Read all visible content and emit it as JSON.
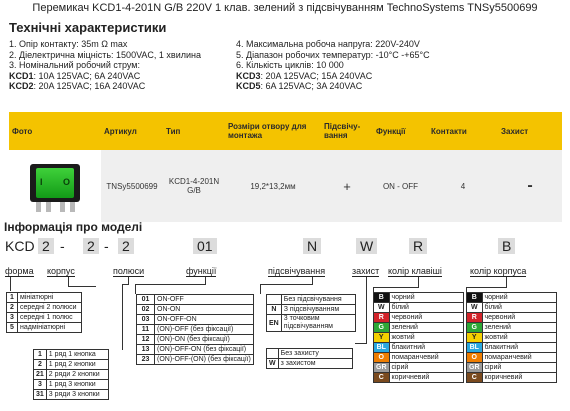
{
  "title": "Перемикач KCD1-4-201N G/B 220V 1 клав.  зелений з підсвічуванням TechnoSystems TNSy5500699",
  "subhead": "Технічні характеристики",
  "specs_left": [
    "1. Опір контакту: 35m Ω  max",
    "2. Діелектрична міцність:  1500VAC, 1 хвилина",
    "3. Номінальний робочий струм:"
  ],
  "specs_left_kcd": [
    {
      "code": "KCD1",
      "val": ": 10A 125VAC; 6A 240VAC"
    },
    {
      "code": "KCD2",
      "val": ": 20A 125VAC; 16A 240VAC"
    }
  ],
  "specs_right": [
    "4. Максимальна робоча напруга: 220V-240V",
    "5. Діапазон робочих температур: -10°C -+65°C",
    "6. Кількість циклів: 10 000"
  ],
  "specs_right_kcd": [
    {
      "code": "KCD3",
      "val": ": 20A 125VAC; 15A 240VAC"
    },
    {
      "code": "KCD5",
      "val": ": 6A 125VAC; 3A 240VAC"
    }
  ],
  "table": {
    "headers": [
      "Фото",
      "Артикул",
      "Тип",
      "Розміри отвору для монтажа",
      "Підсвічу- вання",
      "Функції",
      "Контакти",
      "Захист"
    ],
    "row": {
      "article": "TNSy5500699",
      "type": "KCD1-4-201N G/B",
      "size": "19,2*13,2мм",
      "backlight": "+",
      "function": "ON - OFF",
      "contacts": "4",
      "protection": "-"
    },
    "switch_marks": {
      "on": "I",
      "off": "O"
    }
  },
  "model_info_title": "Інформація про моделі",
  "model_code": {
    "prefix": "KCD",
    "p1": "2",
    "dash1": "-",
    "p2": "2",
    "dash2": "-",
    "p3": "2",
    "p4": "01",
    "p5": "N",
    "p6": "W",
    "p7": "R",
    "p8": "B"
  },
  "code_labels": {
    "form": "форма",
    "body": "корпус",
    "poles": "полюси",
    "functions": "функції",
    "backlight": "підсвічування",
    "protection": "захист",
    "key_color": "колір клавіші",
    "body_color": "колір корпуса"
  },
  "form_list": [
    {
      "k": "1",
      "v": "мініатюрні"
    },
    {
      "k": "2",
      "v": "середні 2 полюси"
    },
    {
      "k": "3",
      "v": "середні 1 полюс"
    },
    {
      "k": "5",
      "v": "надмініатюрні"
    }
  ],
  "pole_list": [
    {
      "k": "1",
      "v": "1 ряд 1 кнопка"
    },
    {
      "k": "2",
      "v": "1 ряд 2 кнопки"
    },
    {
      "k": "21",
      "v": "2 ряди 2 кнопки"
    },
    {
      "k": "3",
      "v": "1 ряд 3 кнопки"
    },
    {
      "k": "31",
      "v": "3 ряди 3 кнопки"
    }
  ],
  "function_list": [
    {
      "k": "01",
      "v": "ON-OFF"
    },
    {
      "k": "02",
      "v": "ON-ON"
    },
    {
      "k": "03",
      "v": "ON-OFF-ON"
    },
    {
      "k": "11",
      "v": "(ON)-OFF (без фіксації)"
    },
    {
      "k": "12",
      "v": "(ON)-ON (без фіксації)"
    },
    {
      "k": "13",
      "v": "(ON)-OFF-ON (без фіксації)"
    },
    {
      "k": "23",
      "v": "(ON)-OFF-(ON) (без фіксації)"
    }
  ],
  "backlight_list": [
    {
      "k": "",
      "v": "Без підсвічування"
    },
    {
      "k": "N",
      "v": "З підсвічуванням"
    },
    {
      "k": "EN",
      "v": "3 точковим підсвічуванням"
    }
  ],
  "protection_list": [
    {
      "k": "",
      "v": "Без захисту"
    },
    {
      "k": "W",
      "v": "з захистом"
    }
  ],
  "key_colors": [
    {
      "k": "B",
      "v": "чорний",
      "color": "#111111"
    },
    {
      "k": "W",
      "v": "білий",
      "color": "#ffffff"
    },
    {
      "k": "R",
      "v": "червоний",
      "color": "#d2232a"
    },
    {
      "k": "G",
      "v": "зелений",
      "color": "#2ea836"
    },
    {
      "k": "Y",
      "v": "жовтий",
      "color": "#f5d000"
    },
    {
      "k": "BL",
      "v": "блакитний",
      "color": "#29a8e0"
    },
    {
      "k": "O",
      "v": "помаранчевий",
      "color": "#ef7d00"
    },
    {
      "k": "GR",
      "v": "сірий",
      "color": "#9a9a9a"
    },
    {
      "k": "C",
      "v": "коричневий",
      "color": "#7a4a1e"
    }
  ],
  "body_colors": [
    {
      "k": "B",
      "v": "чорний",
      "color": "#111111"
    },
    {
      "k": "W",
      "v": "білий",
      "color": "#ffffff"
    },
    {
      "k": "R",
      "v": "червоний",
      "color": "#d2232a"
    },
    {
      "k": "G",
      "v": "зелений",
      "color": "#2ea836"
    },
    {
      "k": "Y",
      "v": "жовтий",
      "color": "#f5d000"
    },
    {
      "k": "BL",
      "v": "блакитний",
      "color": "#29a8e0"
    },
    {
      "k": "O",
      "v": "помаранчевий",
      "color": "#ef7d00"
    },
    {
      "k": "GR",
      "v": "сірий",
      "color": "#9a9a9a"
    },
    {
      "k": "C",
      "v": "коричневий",
      "color": "#7a4a1e"
    }
  ],
  "accent": "#f4c300"
}
